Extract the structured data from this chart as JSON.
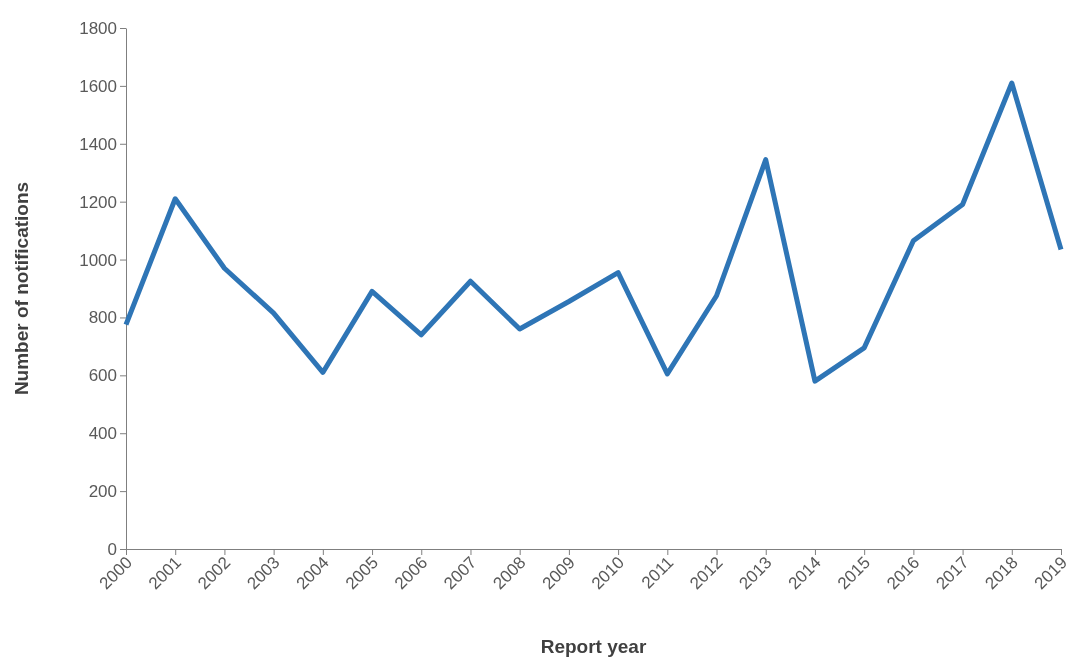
{
  "chart_data": {
    "type": "line",
    "xlabel": "Report year",
    "ylabel": "Number of notifications",
    "categories": [
      "2000",
      "2001",
      "2002",
      "2003",
      "2004",
      "2005",
      "2006",
      "2007",
      "2008",
      "2009",
      "2010",
      "2011",
      "2012",
      "2013",
      "2014",
      "2015",
      "2016",
      "2017",
      "2018",
      "2019"
    ],
    "series": [
      {
        "color": "#2e75b6",
        "values": [
          775,
          1210,
          970,
          815,
          610,
          890,
          740,
          925,
          760,
          855,
          955,
          605,
          875,
          1345,
          580,
          695,
          1065,
          1190,
          1610,
          1035
        ]
      }
    ],
    "ylim": [
      0,
      1800
    ],
    "yticks": [
      0,
      200,
      400,
      600,
      800,
      1000,
      1200,
      1400,
      1600,
      1800
    ],
    "grid": false,
    "marker": "none",
    "line_style": "solid"
  }
}
